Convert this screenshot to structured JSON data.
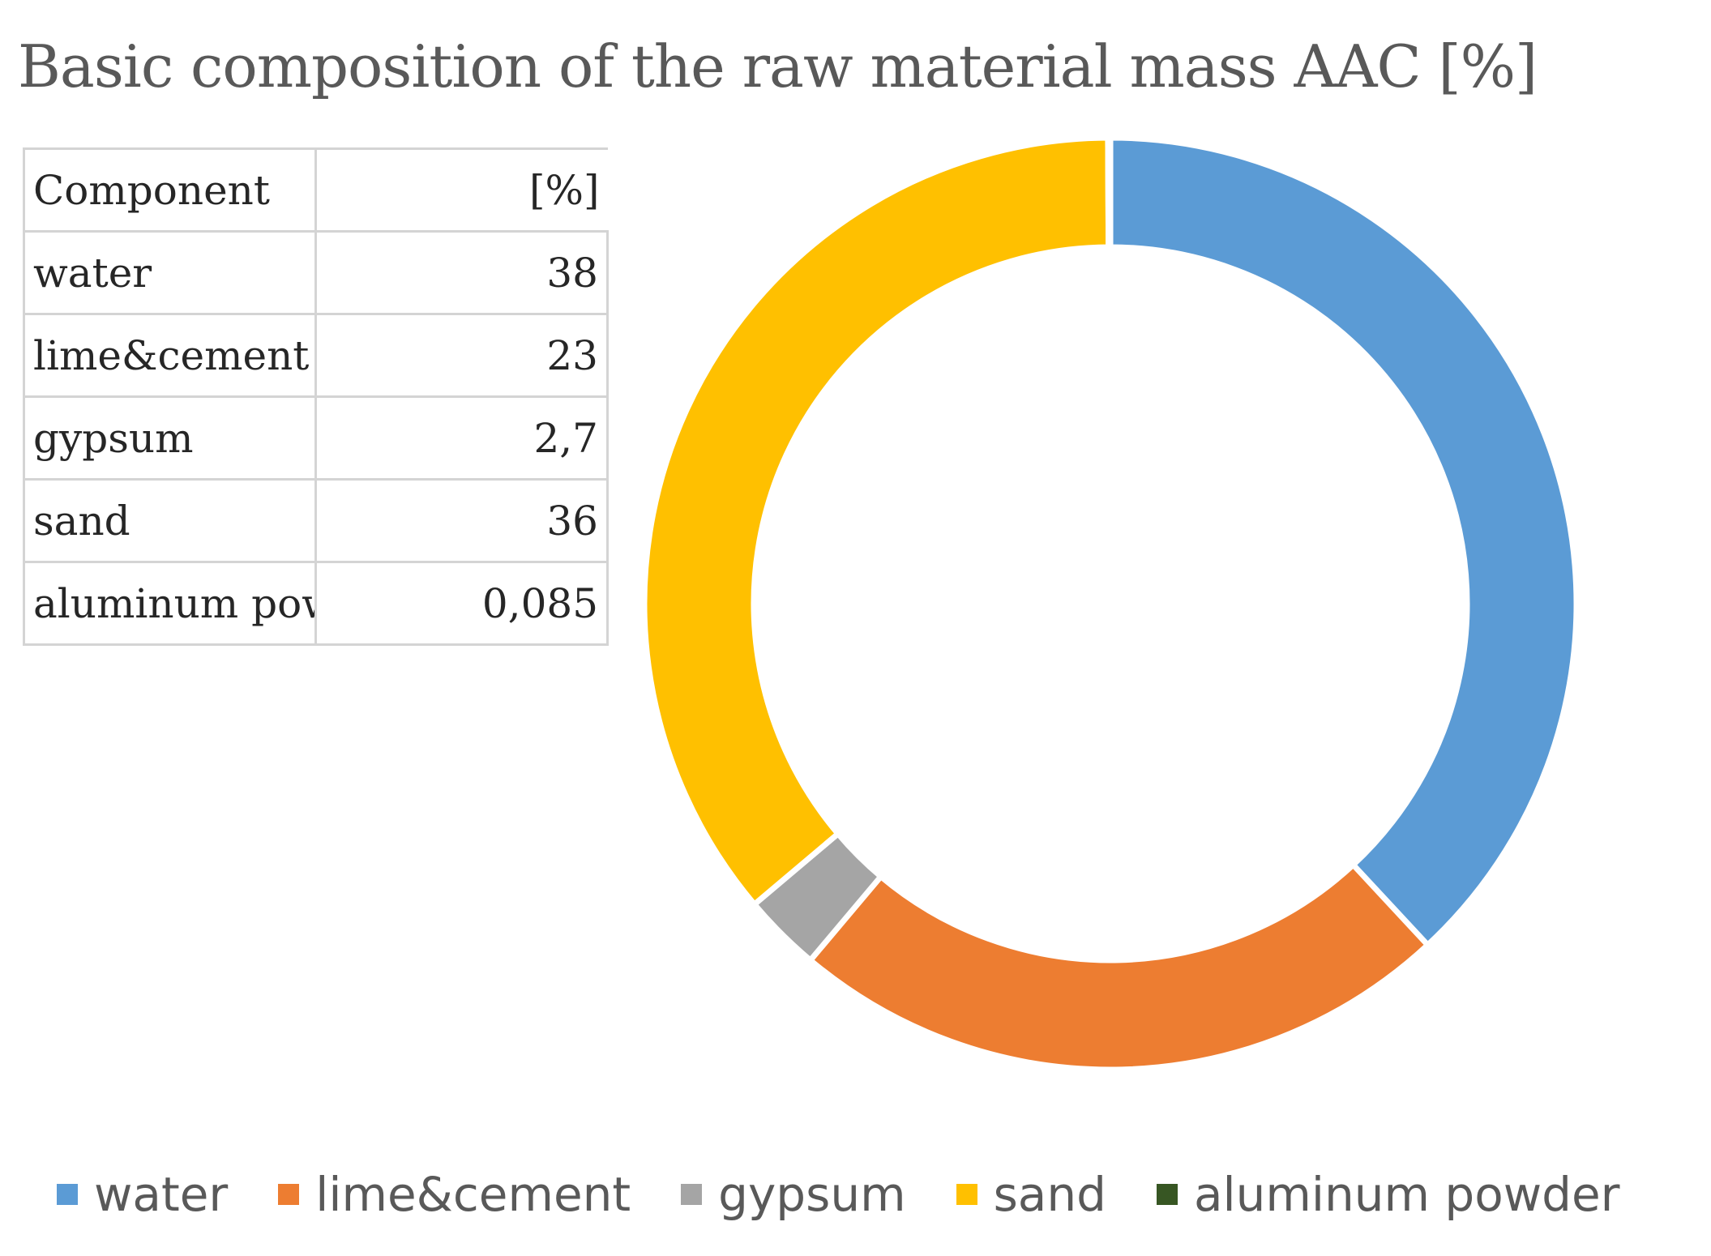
{
  "chart_data": {
    "type": "pie",
    "title": "Basic composition of the raw  material mass AAC [%]",
    "donut": true,
    "table": {
      "headers": [
        "Component",
        "[%]"
      ],
      "rows": [
        [
          "water",
          "38"
        ],
        [
          "lime&cement",
          "23"
        ],
        [
          "gypsum",
          "2,7"
        ],
        [
          "sand",
          "36"
        ],
        [
          "aluminum powder",
          "0,085"
        ]
      ]
    },
    "categories": [
      "water",
      "lime&cement",
      "gypsum",
      "sand",
      "aluminum powder"
    ],
    "values": [
      38,
      23,
      2.7,
      36,
      0.085
    ],
    "colors": [
      "#5b9bd5",
      "#ed7d31",
      "#a5a5a5",
      "#ffc000",
      "#375623"
    ],
    "legend": {
      "position": "bottom",
      "labels": [
        "water",
        "lime&cement",
        "gypsum",
        "sand",
        "aluminum powder"
      ]
    }
  }
}
